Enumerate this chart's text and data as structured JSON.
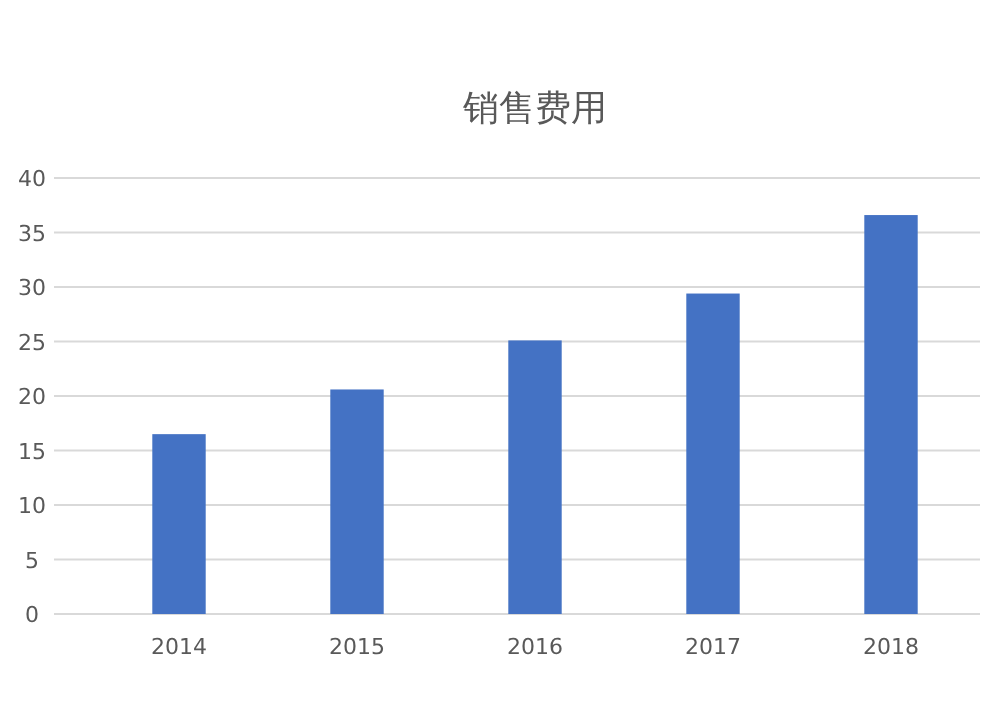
{
  "chart_data": {
    "type": "bar",
    "title": "销售费用",
    "categories": [
      "2014",
      "2015",
      "2016",
      "2017",
      "2018"
    ],
    "values": [
      16.5,
      20.6,
      25.1,
      29.4,
      36.6
    ],
    "color": "#4472c4",
    "ylim": [
      0,
      40
    ],
    "yticks": [
      0,
      5,
      10,
      15,
      20,
      25,
      30,
      35,
      40
    ],
    "grid": "y"
  }
}
